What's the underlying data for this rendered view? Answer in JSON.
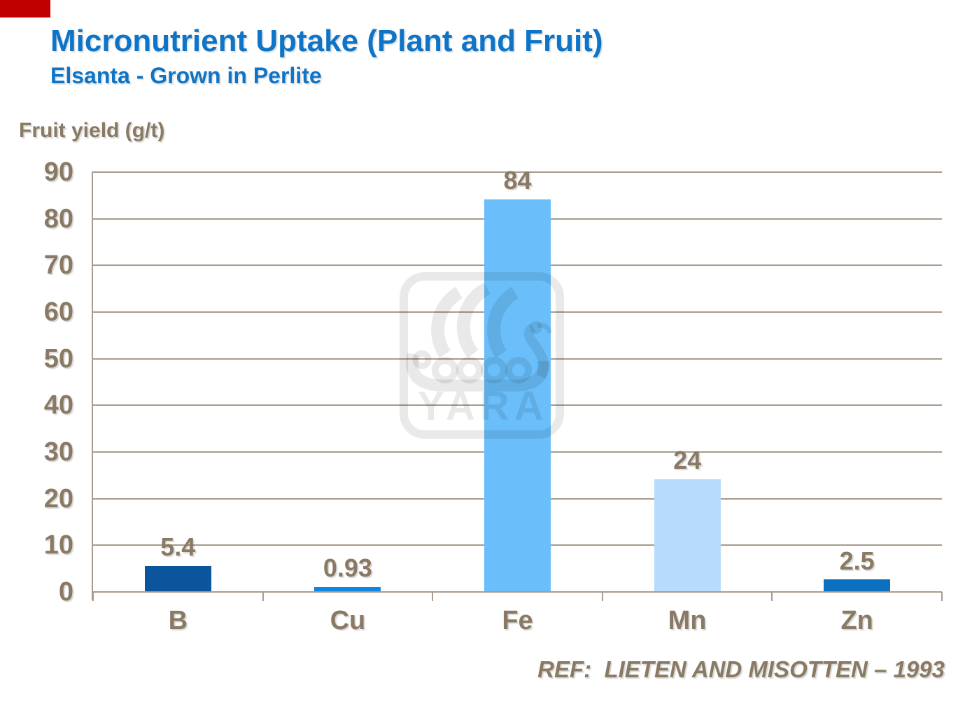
{
  "page": {
    "title": "Micronutrient Uptake (Plant and Fruit)",
    "subtitle": "Elsanta - Grown in Perlite",
    "axis_title": "Fruit yield (g/t)",
    "reference": "REF:  LIETEN AND MISOTTEN – 1993"
  },
  "watermark": {
    "text": "YARA"
  },
  "colors": {
    "background": "#ffffff",
    "title_blue": "#0e74c8",
    "label_brown": "#8a7a64",
    "gridline": "#a89b8d",
    "red_mark": "#c00000",
    "watermark": "rgba(0,0,0,0.085)"
  },
  "chart_data": {
    "type": "bar",
    "title": "Micronutrient Uptake (Plant and Fruit)",
    "subtitle": "Elsanta - Grown in Perlite",
    "categories": [
      "B",
      "Cu",
      "Fe",
      "Mn",
      "Zn"
    ],
    "values": [
      5.4,
      0.93,
      84,
      24,
      2.5
    ],
    "data_labels": [
      "5.4",
      "0.93",
      "84",
      "24",
      "2.5"
    ],
    "bar_colors": [
      "#0a559c",
      "#0f87e2",
      "#6abef9",
      "#b7dcfb",
      "#0b70c0"
    ],
    "xlabel": "",
    "ylabel": "Fruit yield (g/t)",
    "ylim": [
      0,
      90
    ],
    "yticks": [
      0,
      10,
      20,
      30,
      40,
      50,
      60,
      70,
      80,
      90
    ],
    "grid": true,
    "legend": false,
    "annotation": "REF:  LIETEN AND MISOTTEN – 1993"
  }
}
